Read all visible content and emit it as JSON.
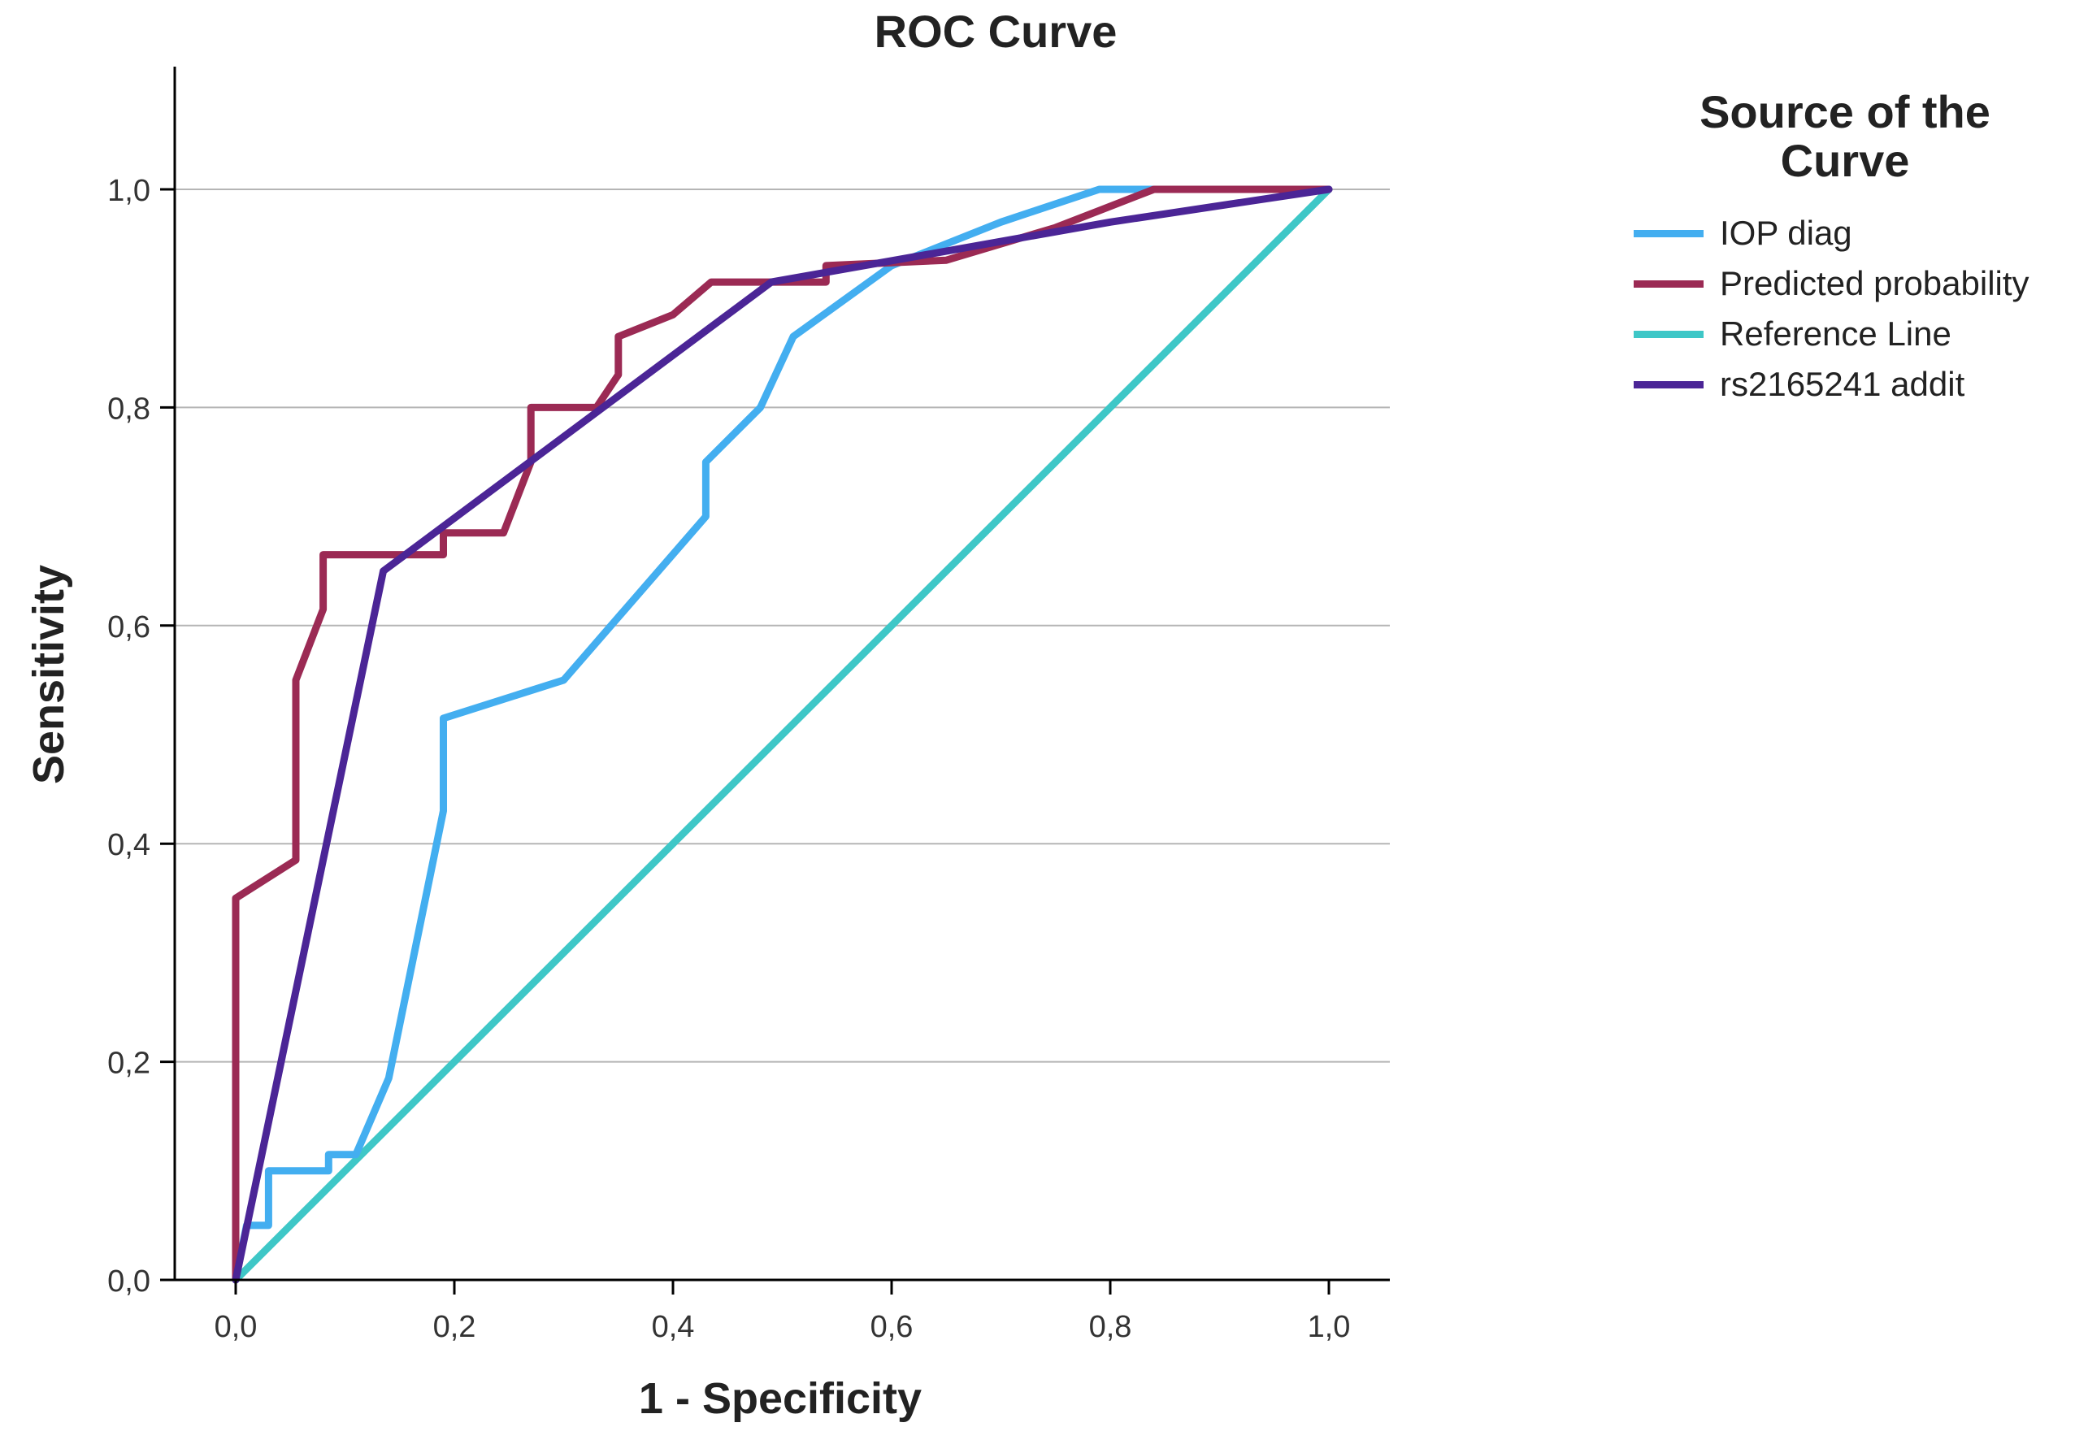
{
  "chart_data": {
    "type": "line",
    "title": "ROC Curve",
    "xlabel": "1 - Specificity",
    "ylabel": "Sensitivity",
    "xlim": [
      0,
      1.05
    ],
    "ylim": [
      0,
      1.1
    ],
    "x_ticks": [
      0,
      0.2,
      0.4,
      0.6,
      0.8,
      1.0
    ],
    "x_tick_labels": [
      "0,0",
      "0,2",
      "0,4",
      "0,6",
      "0,8",
      "1,0"
    ],
    "y_ticks": [
      0,
      0.2,
      0.4,
      0.6,
      0.8,
      1.0
    ],
    "y_tick_labels": [
      "0,0",
      "0,2",
      "0,4",
      "0,6",
      "0,8",
      "1,0"
    ],
    "grid": "horizontal",
    "legend": {
      "title": "Source of the Curve",
      "position": "right"
    },
    "series": [
      {
        "name": "IOP diag",
        "color": "#43aef0",
        "points": [
          [
            0,
            0
          ],
          [
            0.01,
            0.05
          ],
          [
            0.03,
            0.05
          ],
          [
            0.03,
            0.1
          ],
          [
            0.085,
            0.1
          ],
          [
            0.085,
            0.115
          ],
          [
            0.11,
            0.115
          ],
          [
            0.14,
            0.185
          ],
          [
            0.19,
            0.43
          ],
          [
            0.19,
            0.515
          ],
          [
            0.3,
            0.55
          ],
          [
            0.43,
            0.7
          ],
          [
            0.43,
            0.75
          ],
          [
            0.48,
            0.8
          ],
          [
            0.51,
            0.865
          ],
          [
            0.6,
            0.93
          ],
          [
            0.7,
            0.97
          ],
          [
            0.79,
            1.0
          ],
          [
            0.85,
            1.0
          ],
          [
            1.0,
            1.0
          ]
        ]
      },
      {
        "name": "Predicted probability",
        "color": "#9b2a54",
        "points": [
          [
            0,
            0
          ],
          [
            0,
            0.35
          ],
          [
            0.055,
            0.385
          ],
          [
            0.055,
            0.55
          ],
          [
            0.08,
            0.615
          ],
          [
            0.08,
            0.665
          ],
          [
            0.19,
            0.665
          ],
          [
            0.19,
            0.685
          ],
          [
            0.245,
            0.685
          ],
          [
            0.27,
            0.75
          ],
          [
            0.27,
            0.8
          ],
          [
            0.33,
            0.8
          ],
          [
            0.35,
            0.83
          ],
          [
            0.35,
            0.865
          ],
          [
            0.4,
            0.885
          ],
          [
            0.435,
            0.915
          ],
          [
            0.54,
            0.915
          ],
          [
            0.54,
            0.93
          ],
          [
            0.65,
            0.935
          ],
          [
            0.75,
            0.965
          ],
          [
            0.84,
            1.0
          ],
          [
            1.0,
            1.0
          ]
        ]
      },
      {
        "name": "Reference Line",
        "color": "#3ec7c7",
        "points": [
          [
            0,
            0
          ],
          [
            1.0,
            1.0
          ]
        ]
      },
      {
        "name": "rs2165241 addit",
        "color": "#4b2596",
        "points": [
          [
            0,
            0
          ],
          [
            0.135,
            0.65
          ],
          [
            0.49,
            0.915
          ],
          [
            0.8,
            0.97
          ],
          [
            1.0,
            1.0
          ]
        ]
      }
    ]
  }
}
